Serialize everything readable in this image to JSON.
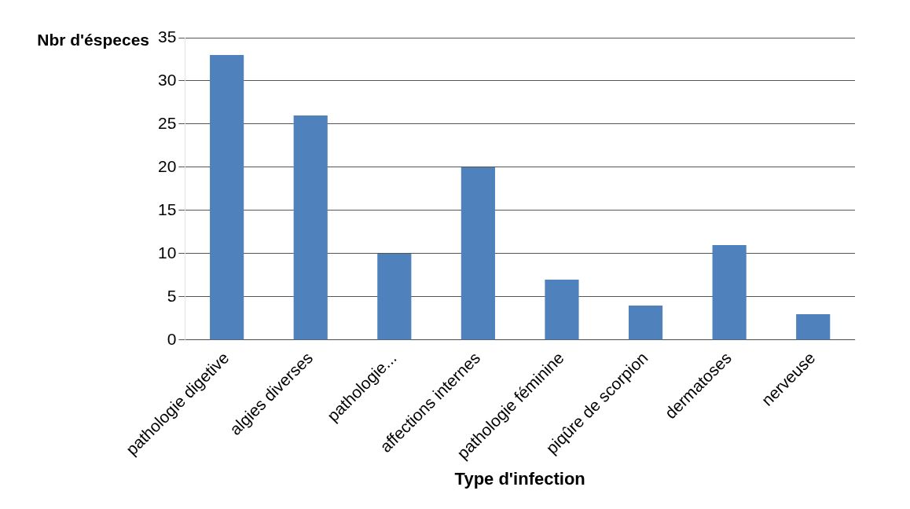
{
  "chart_data": {
    "type": "bar",
    "xlabel": "Type d'infection",
    "ylabel": "Nbr d'éspeces",
    "categories": [
      "pathologie digetive",
      "algies diverses",
      "pathologie...",
      "affections internes",
      "pathologie féminine",
      "piqûre de scorpion",
      "dermatoses",
      "nerveuse"
    ],
    "values": [
      33,
      26,
      10,
      20,
      7,
      4,
      11,
      3
    ],
    "color": "#4f81bd",
    "ylim": [
      0,
      35
    ],
    "yticks": [
      0,
      5,
      10,
      15,
      20,
      25,
      30,
      35
    ],
    "grid": "y",
    "legend": false
  }
}
